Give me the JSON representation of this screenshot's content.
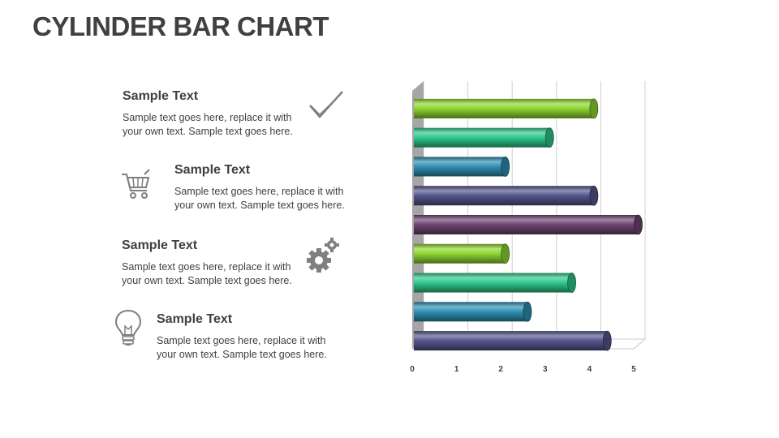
{
  "page": {
    "title": "CYLINDER BAR CHART"
  },
  "items": [
    {
      "heading": "Sample Text",
      "body_line1": "Sample text goes here, replace it with",
      "body_line2": "your own text. Sample text goes here.",
      "icon": "checkmark-icon"
    },
    {
      "heading": "Sample Text",
      "body_line1": "Sample text goes here, replace it with",
      "body_line2": "your own text. Sample text goes here.",
      "icon": "shopping-cart-icon"
    },
    {
      "heading": "Sample Text",
      "body_line1": "Sample text goes here, replace it with",
      "body_line2": "your own text. Sample text goes here.",
      "icon": "gears-icon"
    },
    {
      "heading": "Sample Text",
      "body_line1": "Sample text goes here, replace it with",
      "body_line2": "your own text. Sample text goes here.",
      "icon": "lightbulb-icon"
    }
  ],
  "colors": {
    "icon_gray": "#7f7f7f",
    "text": "#404040"
  },
  "chart_data": {
    "type": "bar",
    "orientation": "horizontal",
    "style": "3d-cylinder",
    "values": [
      4.1,
      3.1,
      2.1,
      4.1,
      5.1,
      2.1,
      3.6,
      2.6,
      4.4
    ],
    "colors": [
      "#8ed630",
      "#2ec98a",
      "#2f8fb3",
      "#55558e",
      "#6e4470",
      "#8ed630",
      "#2ec98a",
      "#2f8fb3",
      "#55558e"
    ],
    "xlim": [
      0,
      5
    ],
    "xticks": [
      "0",
      "1",
      "2",
      "3",
      "4",
      "5"
    ],
    "grid": true
  }
}
